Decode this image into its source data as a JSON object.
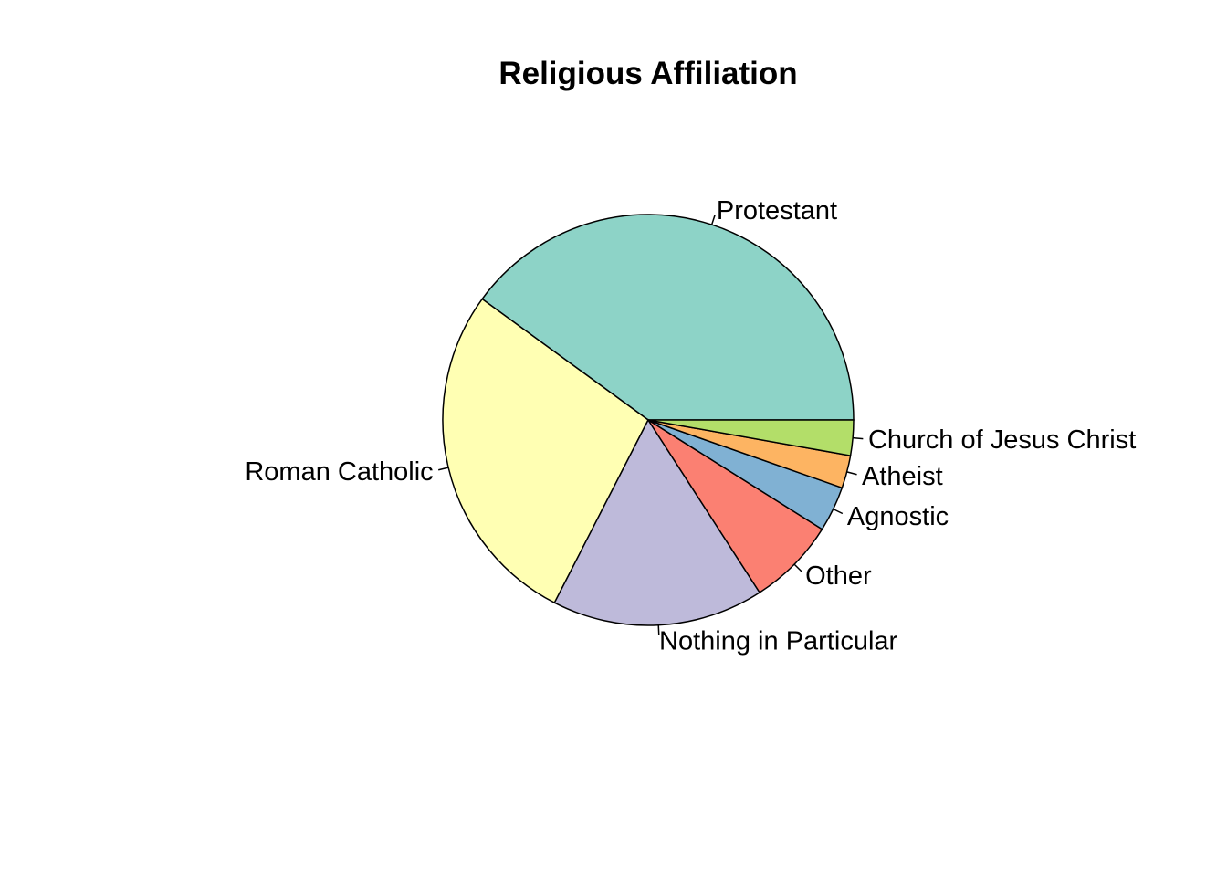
{
  "chart_data": {
    "type": "pie",
    "title": "Religious Affiliation",
    "start_angle_deg": 0,
    "direction": "counterclockwise",
    "border_color": "#000000",
    "categories": [
      "Protestant",
      "Roman Catholic",
      "Nothing in Particular",
      "Other",
      "Agnostic",
      "Atheist",
      "Church of Jesus Christ"
    ],
    "values": [
      40.3,
      27.7,
      16.8,
      7.0,
      3.6,
      2.6,
      2.8
    ],
    "colors": [
      "#8DD3C7",
      "#FFFFB3",
      "#BEBADA",
      "#FB8072",
      "#80B1D3",
      "#FDB462",
      "#B3DE69"
    ]
  }
}
